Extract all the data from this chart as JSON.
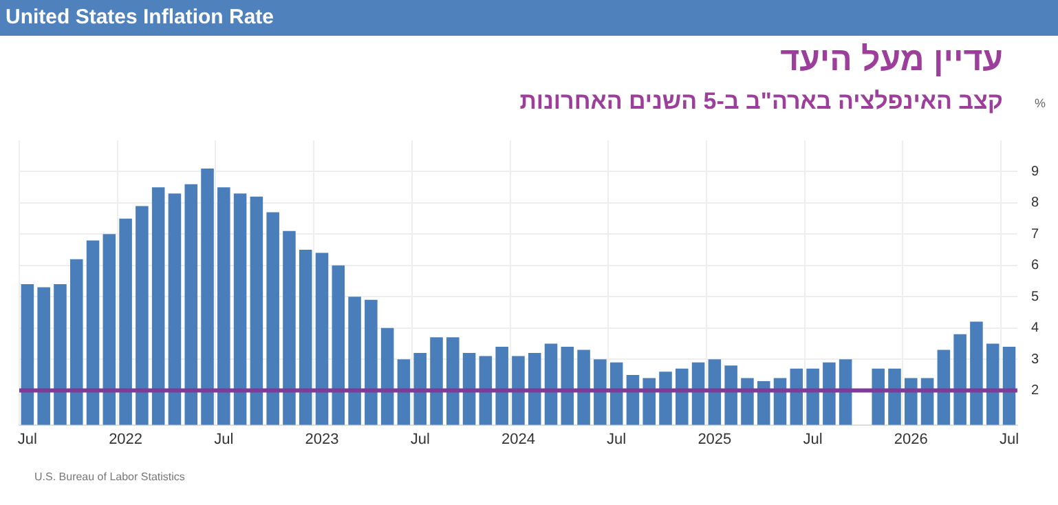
{
  "chart_data": {
    "type": "bar",
    "title": "United States Inflation Rate",
    "subtitle": "עדיין מעל היעד",
    "annotations": [
      "קצב האינפלציה בארה\"ב ב-5 השנים האחרונות",
      "U.S. Bureau of Labor Statistics"
    ],
    "ylabel": "%",
    "categories": [
      "Jul",
      null,
      null,
      null,
      null,
      null,
      "2022",
      null,
      null,
      null,
      null,
      null,
      "Jul",
      null,
      null,
      null,
      null,
      null,
      "2023",
      null,
      null,
      null,
      null,
      null,
      "Jul",
      null,
      null,
      null,
      null,
      null,
      "2024",
      null,
      null,
      null,
      null,
      null,
      "Jul",
      null,
      null,
      null,
      null,
      null,
      "2025",
      null,
      null,
      null,
      null,
      null,
      "Jul",
      null,
      null,
      null,
      null,
      null,
      "2026",
      null,
      null,
      null,
      null,
      null,
      "Jul"
    ],
    "series": [
      {
        "color": "#4a7ebb",
        "values": [
          5.4,
          5.3,
          5.4,
          6.2,
          6.8,
          7.0,
          7.5,
          7.9,
          8.5,
          8.3,
          8.6,
          9.1,
          8.5,
          8.3,
          8.2,
          7.7,
          7.1,
          6.5,
          6.4,
          6.0,
          5.0,
          4.9,
          4.0,
          3.0,
          3.2,
          3.7,
          3.7,
          3.2,
          3.1,
          3.4,
          3.1,
          3.2,
          3.5,
          3.4,
          3.3,
          3.0,
          2.9,
          2.5,
          2.4,
          2.6,
          2.7,
          2.9,
          3.0,
          2.8,
          2.4,
          2.3,
          2.4,
          2.7,
          2.7,
          2.9,
          3.0,
          null,
          2.7,
          2.7,
          2.4,
          2.4,
          3.3,
          3.8,
          4.2,
          3.5,
          3.4
        ]
      }
    ],
    "ylim": [
      0.9,
      10
    ],
    "yticks": [
      2,
      3,
      4,
      5,
      6,
      7,
      8,
      9
    ],
    "grid": true,
    "legend": false,
    "ref_lines": [
      {
        "axis": "y",
        "value": 2,
        "color": "#7d3c98"
      }
    ]
  }
}
